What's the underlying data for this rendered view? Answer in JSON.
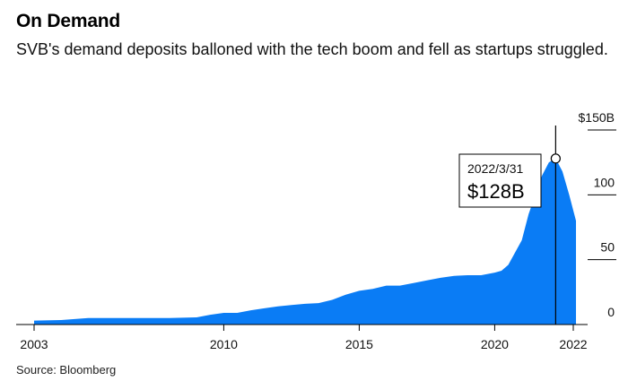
{
  "header": {
    "title": "On Demand",
    "subtitle": "SVB's demand deposits balloned with the tech boom and fell as startups struggled."
  },
  "footer": {
    "source": "Source: Bloomberg"
  },
  "colors": {
    "area": "#0a7cf5",
    "gridline": "#000000",
    "callout_line": "#000000"
  },
  "callout": {
    "date": "2022/3/31",
    "value": "$128B",
    "x": 2022.25,
    "y": 128
  },
  "chart_data": {
    "type": "area",
    "title": "On Demand",
    "subtitle": "SVB's demand deposits balloned with the tech boom and fell as startups struggled.",
    "xlabel": "",
    "ylabel": "",
    "unit": "$B",
    "xlim": [
      2003,
      2023.3
    ],
    "ylim": [
      0,
      150
    ],
    "x_ticks": [
      {
        "value": 2003,
        "label": "2003"
      },
      {
        "value": 2010,
        "label": "2010"
      },
      {
        "value": 2015,
        "label": "2015"
      },
      {
        "value": 2020,
        "label": "2020"
      },
      {
        "value": 2022.9,
        "label": "2022"
      }
    ],
    "y_ticks": [
      {
        "value": 150,
        "label": "$150B"
      },
      {
        "value": 100,
        "label": "100"
      },
      {
        "value": 50,
        "label": "50"
      },
      {
        "value": 0,
        "label": "0"
      }
    ],
    "grid": false,
    "legend": "none",
    "x": [
      2003.0,
      2004.0,
      2005.0,
      2006.0,
      2007.0,
      2008.0,
      2009.0,
      2009.5,
      2010.0,
      2010.5,
      2011.0,
      2011.5,
      2012.0,
      2012.5,
      2013.0,
      2013.5,
      2014.0,
      2014.5,
      2015.0,
      2015.5,
      2016.0,
      2016.5,
      2017.0,
      2017.5,
      2018.0,
      2018.5,
      2019.0,
      2019.5,
      2020.0,
      2020.25,
      2020.5,
      2021.0,
      2021.25,
      2021.5,
      2021.75,
      2022.0,
      2022.25,
      2022.5,
      2022.75,
      2023.0
    ],
    "y": [
      3,
      3.5,
      5,
      5,
      5,
      5,
      5.5,
      7.5,
      9,
      9,
      11,
      12.5,
      14,
      15,
      16,
      16.5,
      19,
      23,
      26,
      27.5,
      30,
      30,
      32,
      34,
      36,
      37.5,
      38,
      38,
      40,
      41.5,
      46,
      65,
      85,
      100,
      115,
      125,
      128,
      118,
      100,
      80
    ]
  }
}
